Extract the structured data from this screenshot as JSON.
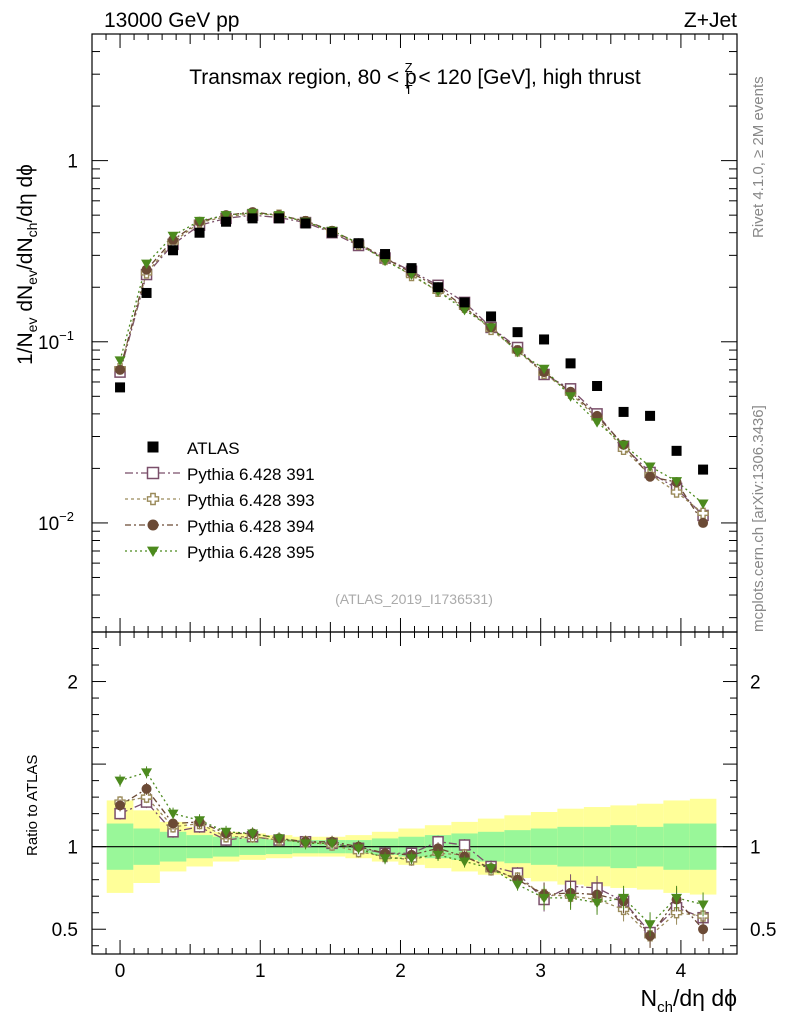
{
  "header": {
    "left": "13000 GeV pp",
    "right": "Z+Jet"
  },
  "side_texts": {
    "rivet": "Rivet 4.1.0, ≥ 2M events",
    "mcplots": "mcplots.cern.ch [arXiv:1306.3436]"
  },
  "chart_data": {
    "type": "scatter",
    "title": "Transmax region, 80 < p_T^Z < 120 [GeV], high thrust",
    "title_parts": {
      "pre": "Transmax region, 80 < p",
      "sup": "Z",
      "sub": "T",
      "post": " < 120 [GeV], high thrust"
    },
    "analysis_tag": "(ATLAS_2019_I1736531)",
    "xlabel": "N_ch/dη dϕ",
    "xlabel_parts": {
      "main": "N",
      "sub": "ch",
      "rest": "/dη dϕ"
    },
    "ylabel": "1/N_ev dN_ev/dN_ch/dη dϕ",
    "ylabel_parts": {
      "a": "1/N",
      "a_sub": "ev",
      "b": " dN",
      "b_sub": "ev",
      "c": "/dN",
      "c_sub": "ch",
      "d": "/dη dϕ"
    },
    "ratio_ylabel": "Ratio to ATLAS",
    "xlim": [
      -0.2,
      4.4
    ],
    "ylim": [
      0.0025,
      5
    ],
    "yscale": "log",
    "ratio_ylim": [
      0.35,
      2.3
    ],
    "x_ticks": [
      "0",
      "1",
      "2",
      "3",
      "4"
    ],
    "y_tick_labels": [
      {
        "value": 1,
        "base": "1",
        "exp": ""
      },
      {
        "value": 0.1,
        "base": "10",
        "exp": "−1"
      },
      {
        "value": 0.01,
        "base": "10",
        "exp": "−2"
      }
    ],
    "ratio_ticks": [
      {
        "value": 2,
        "label": "2"
      },
      {
        "value": 1,
        "label": "1"
      },
      {
        "value": 0.5,
        "label": "0.5"
      }
    ],
    "x": [
      0,
      0.189,
      0.378,
      0.567,
      0.756,
      0.945,
      1.134,
      1.323,
      1.512,
      1.701,
      1.89,
      2.079,
      2.268,
      2.457,
      2.646,
      2.835,
      3.024,
      3.213,
      3.402,
      3.591,
      3.78,
      3.969,
      4.158
    ],
    "series": [
      {
        "name": "ATLAS",
        "color": "#000000",
        "marker": "square-filled",
        "values": [
          0.056,
          0.186,
          0.32,
          0.4,
          0.46,
          0.48,
          0.48,
          0.45,
          0.4,
          0.35,
          0.305,
          0.255,
          0.2,
          0.165,
          0.138,
          0.113,
          0.103,
          0.076,
          0.057,
          0.041,
          0.039,
          0.025,
          0.0197
        ]
      },
      {
        "name": "Pythia 6.428 391",
        "color": "#7a4f6a",
        "marker": "square-open",
        "dash": "8,3,2,3",
        "values": [
          0.068,
          0.235,
          0.345,
          0.44,
          0.48,
          0.5,
          0.485,
          0.455,
          0.4,
          0.34,
          0.29,
          0.245,
          0.205,
          0.165,
          0.12,
          0.093,
          0.066,
          0.055,
          0.04,
          0.0265,
          0.019,
          0.0155,
          0.011
        ]
      },
      {
        "name": "Pythia 6.428 393",
        "color": "#9a8a5a",
        "marker": "cross-open",
        "dash": "3,3",
        "values": [
          0.071,
          0.24,
          0.355,
          0.455,
          0.49,
          0.51,
          0.5,
          0.46,
          0.405,
          0.345,
          0.285,
          0.232,
          0.19,
          0.155,
          0.117,
          0.089,
          0.067,
          0.052,
          0.038,
          0.0255,
          0.0185,
          0.0148,
          0.0113
        ]
      },
      {
        "name": "Pythia 6.428 394",
        "color": "#6b4a35",
        "marker": "circle-filled",
        "dash": "6,3,2,3",
        "values": [
          0.07,
          0.25,
          0.365,
          0.46,
          0.5,
          0.52,
          0.5,
          0.465,
          0.41,
          0.35,
          0.29,
          0.24,
          0.2,
          0.155,
          0.12,
          0.09,
          0.068,
          0.053,
          0.039,
          0.027,
          0.018,
          0.0168,
          0.01
        ]
      },
      {
        "name": "Pythia 6.428 395",
        "color": "#4c8a1e",
        "marker": "triangle-down-filled",
        "dash": "2,3",
        "values": [
          0.079,
          0.27,
          0.385,
          0.465,
          0.5,
          0.515,
          0.5,
          0.46,
          0.41,
          0.35,
          0.28,
          0.235,
          0.19,
          0.15,
          0.12,
          0.088,
          0.071,
          0.05,
          0.036,
          0.027,
          0.0205,
          0.017,
          0.0128
        ]
      }
    ],
    "ratio_series": [
      {
        "name": "Pythia 6.428 391",
        "values": [
          1.2,
          1.27,
          1.09,
          1.12,
          1.04,
          1.06,
          1.04,
          1.03,
          1.02,
          0.99,
          0.96,
          0.96,
          1.03,
          1.01,
          0.88,
          0.84,
          0.68,
          0.76,
          0.75,
          0.67,
          0.48,
          0.63,
          0.57
        ]
      },
      {
        "name": "Pythia 6.428 393",
        "values": [
          1.27,
          1.3,
          1.12,
          1.14,
          1.06,
          1.06,
          1.04,
          1.03,
          1.01,
          0.97,
          0.94,
          0.92,
          0.96,
          0.95,
          0.86,
          0.81,
          0.71,
          0.7,
          0.68,
          0.62,
          0.46,
          0.6,
          0.58
        ]
      },
      {
        "name": "Pythia 6.428 394",
        "values": [
          1.25,
          1.35,
          1.14,
          1.15,
          1.08,
          1.08,
          1.05,
          1.03,
          1.03,
          1.0,
          0.96,
          0.95,
          0.99,
          0.94,
          0.87,
          0.8,
          0.71,
          0.72,
          0.71,
          0.67,
          0.46,
          0.68,
          0.5
        ]
      },
      {
        "name": "Pythia 6.428 395",
        "values": [
          1.4,
          1.45,
          1.2,
          1.16,
          1.09,
          1.08,
          1.05,
          1.02,
          1.02,
          0.99,
          0.93,
          0.93,
          0.95,
          0.91,
          0.87,
          0.77,
          0.69,
          0.69,
          0.66,
          0.69,
          0.53,
          0.69,
          0.65
        ]
      }
    ],
    "bands": {
      "bin_edges": [
        -0.095,
        0.095,
        0.284,
        0.473,
        0.662,
        0.851,
        1.04,
        1.229,
        1.418,
        1.607,
        1.796,
        1.985,
        2.174,
        2.363,
        2.552,
        2.741,
        2.93,
        3.119,
        3.308,
        3.497,
        3.686,
        3.875,
        4.064,
        4.253
      ],
      "green_halfwidth": [
        0.14,
        0.11,
        0.09,
        0.07,
        0.06,
        0.05,
        0.045,
        0.04,
        0.04,
        0.04,
        0.05,
        0.06,
        0.07,
        0.08,
        0.09,
        0.1,
        0.11,
        0.12,
        0.12,
        0.13,
        0.12,
        0.14,
        0.14
      ],
      "yellow_halfwidth": [
        0.28,
        0.22,
        0.15,
        0.12,
        0.09,
        0.08,
        0.07,
        0.06,
        0.06,
        0.07,
        0.09,
        0.11,
        0.13,
        0.15,
        0.17,
        0.19,
        0.21,
        0.23,
        0.24,
        0.25,
        0.26,
        0.28,
        0.29
      ],
      "green_color": "#99f799",
      "yellow_color": "#ffff99"
    }
  }
}
